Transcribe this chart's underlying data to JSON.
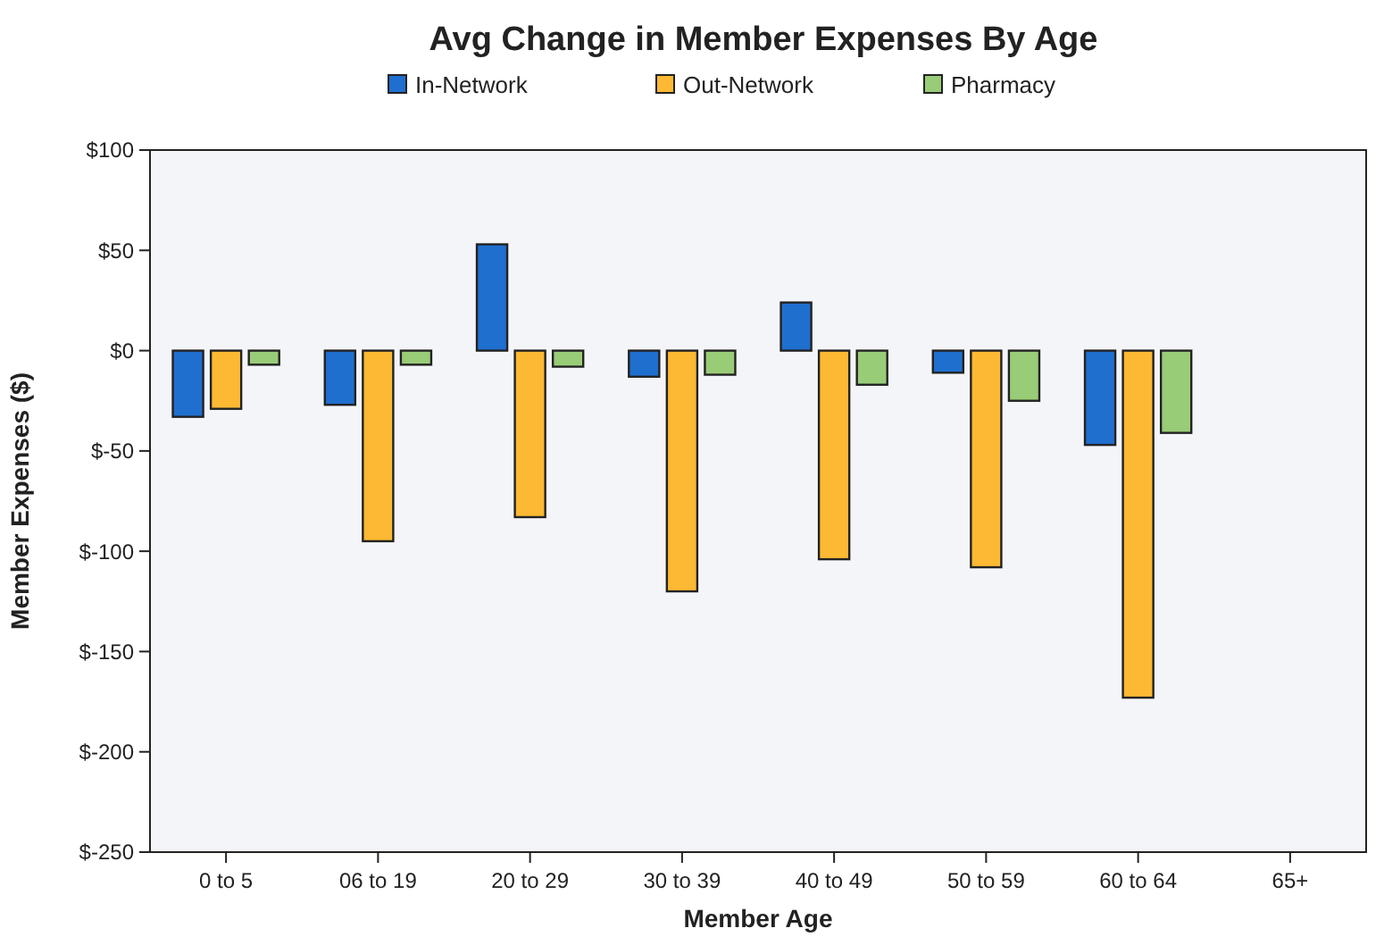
{
  "chart_data": {
    "type": "bar",
    "title": "Avg Change in Member Expenses By Age",
    "xlabel": "Member Age",
    "ylabel": "Member Expenses ($)",
    "categories": [
      "0 to 5",
      "06 to 19",
      "20 to 29",
      "30 to 39",
      "40 to 49",
      "50 to 59",
      "60 to 64",
      "65+"
    ],
    "series": [
      {
        "name": "In-Network",
        "color": "#1f6fcf",
        "values": [
          -33,
          -27,
          53,
          -13,
          24,
          -11,
          -47,
          null
        ]
      },
      {
        "name": "Out-Network",
        "color": "#fdb933",
        "values": [
          -29,
          -95,
          -83,
          -120,
          -104,
          -108,
          -173,
          null
        ]
      },
      {
        "name": "Pharmacy",
        "color": "#99cc77",
        "values": [
          -7,
          -7,
          -8,
          -12,
          -17,
          -25,
          -41,
          null
        ]
      }
    ],
    "ylim": [
      -250,
      100
    ],
    "yticks": [
      {
        "value": 100,
        "label": "$100"
      },
      {
        "value": 50,
        "label": "$50"
      },
      {
        "value": 0,
        "label": "$0"
      },
      {
        "value": -50,
        "label": "$-50"
      },
      {
        "value": -100,
        "label": "$-100"
      },
      {
        "value": -150,
        "label": "$-150"
      },
      {
        "value": -200,
        "label": "$-200"
      },
      {
        "value": -250,
        "label": "$-250"
      }
    ],
    "grid": false,
    "legend": "top"
  }
}
